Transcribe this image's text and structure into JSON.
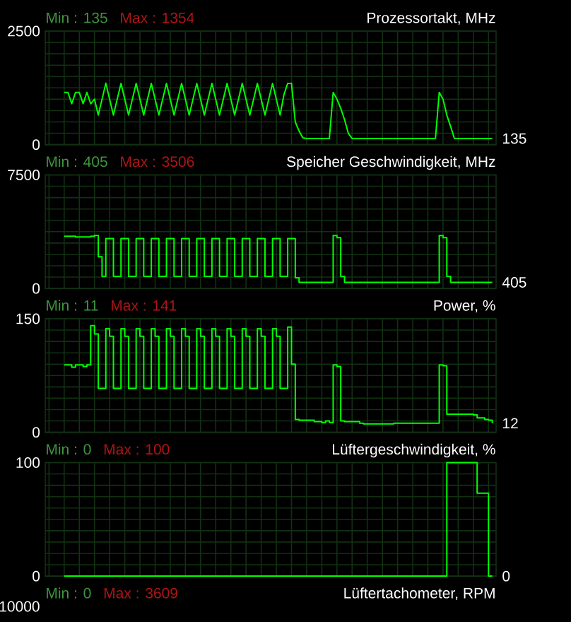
{
  "chart_data": [
    {
      "type": "line",
      "title": "Prozessortakt, MHz",
      "annotations": [
        "Min : 135",
        "Max : 1354",
        "135"
      ],
      "categories": [
        null,
        null,
        null,
        null,
        null,
        null,
        null,
        null,
        null,
        null,
        null,
        null,
        null,
        null,
        null,
        null,
        null,
        null,
        null,
        null,
        null,
        null,
        null,
        null,
        null,
        null,
        null,
        null,
        null,
        null,
        null,
        null,
        null,
        null,
        null,
        null,
        null,
        null,
        null,
        null,
        null,
        null,
        null,
        null,
        null,
        null,
        null,
        null,
        null,
        null,
        null,
        null,
        null,
        null,
        null,
        null,
        null,
        null,
        null,
        null,
        null,
        null,
        null,
        null,
        null,
        null,
        null,
        null,
        null,
        null,
        null,
        null,
        null,
        null,
        null,
        null,
        null,
        null,
        null,
        null,
        null,
        null,
        null,
        null,
        null,
        null,
        null,
        null,
        null,
        null,
        null,
        null,
        null,
        null,
        null,
        null,
        null,
        null,
        null,
        null,
        null,
        null,
        null,
        null,
        null,
        null,
        null,
        null,
        null,
        null,
        null,
        null,
        null,
        null,
        null,
        null,
        null,
        null,
        null,
        null
      ],
      "series": [
        {
          "color": "#00ff00",
          "values": [
            null,
            null,
            null,
            null,
            null,
            1150,
            1150,
            900,
            1150,
            1150,
            900,
            1150,
            900,
            1000,
            650,
            1000,
            1354,
            1000,
            650,
            1000,
            1350,
            1000,
            650,
            1000,
            1350,
            1000,
            650,
            1000,
            1350,
            1000,
            650,
            1000,
            1350,
            1000,
            650,
            1000,
            1350,
            1000,
            650,
            1000,
            1350,
            1000,
            650,
            1000,
            1350,
            1000,
            650,
            1000,
            1350,
            1000,
            650,
            1000,
            1350,
            1000,
            650,
            1000,
            1350,
            1000,
            650,
            1000,
            1350,
            1000,
            650,
            1100,
            1350,
            1350,
            500,
            300,
            150,
            135,
            135,
            135,
            135,
            135,
            135,
            135,
            1150,
            1000,
            800,
            550,
            250,
            135,
            135,
            135,
            135,
            135,
            135,
            135,
            135,
            135,
            135,
            135,
            135,
            135,
            135,
            135,
            135,
            135,
            135,
            135,
            135,
            135,
            135,
            135,
            1150,
            1000,
            650,
            400,
            135,
            135,
            135,
            135,
            135,
            135,
            135,
            135,
            135,
            135,
            135,
            null
          ]
        }
      ],
      "ylim": [
        0,
        2500
      ],
      "yticks": [
        0,
        {
          "value": 250,
          "label": null
        },
        {
          "value": 500,
          "label": null
        },
        {
          "value": 750,
          "label": null
        },
        {
          "value": 1000,
          "label": null
        },
        {
          "value": 1250,
          "label": null
        },
        {
          "value": 1500,
          "label": null
        },
        {
          "value": 1750,
          "label": null
        },
        {
          "value": 2000,
          "label": null
        },
        {
          "value": 2250,
          "label": null
        },
        2500
      ],
      "grid": true,
      "tick_labels": "y"
    },
    {
      "type": "step",
      "title": "Speicher Geschwindigkeit, MHz",
      "annotations": [
        "Min : 405",
        "Max : 3506",
        "405"
      ],
      "categories": [
        null,
        null,
        null,
        null,
        null,
        null,
        null,
        null,
        null,
        null,
        null,
        null,
        null,
        null,
        null,
        null,
        null,
        null,
        null,
        null,
        null,
        null,
        null,
        null,
        null,
        null,
        null,
        null,
        null,
        null,
        null,
        null,
        null,
        null,
        null,
        null,
        null,
        null,
        null,
        null,
        null,
        null,
        null,
        null,
        null,
        null,
        null,
        null,
        null,
        null,
        null,
        null,
        null,
        null,
        null,
        null,
        null,
        null,
        null,
        null,
        null,
        null,
        null,
        null,
        null,
        null,
        null,
        null,
        null,
        null,
        null,
        null,
        null,
        null,
        null,
        null,
        null,
        null,
        null,
        null,
        null,
        null,
        null,
        null,
        null,
        null,
        null,
        null,
        null,
        null,
        null,
        null,
        null,
        null,
        null,
        null,
        null,
        null,
        null,
        null,
        null,
        null,
        null,
        null,
        null,
        null,
        null,
        null,
        null,
        null,
        null,
        null,
        null,
        null,
        null,
        null,
        null,
        null,
        null,
        null
      ],
      "series": [
        {
          "color": "#00ff00",
          "values": [
            null,
            null,
            null,
            null,
            null,
            3450,
            3450,
            3450,
            3400,
            3400,
            3400,
            3400,
            3450,
            3506,
            2100,
            800,
            3300,
            3300,
            800,
            800,
            3300,
            3300,
            800,
            800,
            3300,
            3300,
            800,
            800,
            3300,
            3300,
            800,
            800,
            3300,
            3300,
            800,
            800,
            3300,
            3300,
            800,
            800,
            3300,
            3300,
            800,
            800,
            3300,
            3300,
            800,
            800,
            3300,
            3300,
            800,
            800,
            3300,
            3300,
            800,
            800,
            3300,
            3300,
            800,
            800,
            3300,
            3300,
            800,
            800,
            3300,
            3300,
            700,
            405,
            405,
            405,
            405,
            405,
            405,
            405,
            405,
            405,
            3500,
            3350,
            800,
            405,
            405,
            405,
            405,
            405,
            405,
            405,
            405,
            405,
            405,
            405,
            405,
            405,
            405,
            405,
            405,
            405,
            405,
            405,
            405,
            405,
            405,
            405,
            405,
            405,
            3500,
            3350,
            800,
            405,
            405,
            405,
            405,
            405,
            405,
            405,
            405,
            405,
            405,
            405,
            405,
            null
          ]
        }
      ],
      "ylim": [
        0,
        7500
      ],
      "yticks": [
        0,
        {
          "value": 750,
          "label": null
        },
        {
          "value": 1500,
          "label": null
        },
        {
          "value": 2250,
          "label": null
        },
        {
          "value": 3000,
          "label": null
        },
        {
          "value": 3750,
          "label": null
        },
        {
          "value": 4500,
          "label": null
        },
        {
          "value": 5250,
          "label": null
        },
        {
          "value": 6000,
          "label": null
        },
        {
          "value": 6750,
          "label": null
        },
        7500
      ],
      "grid": true,
      "tick_labels": "y"
    },
    {
      "type": "step",
      "title": "Power, %",
      "annotations": [
        "Min : 11",
        "Max : 141",
        "12"
      ],
      "categories": [
        null,
        null,
        null,
        null,
        null,
        null,
        null,
        null,
        null,
        null,
        null,
        null,
        null,
        null,
        null,
        null,
        null,
        null,
        null,
        null,
        null,
        null,
        null,
        null,
        null,
        null,
        null,
        null,
        null,
        null,
        null,
        null,
        null,
        null,
        null,
        null,
        null,
        null,
        null,
        null,
        null,
        null,
        null,
        null,
        null,
        null,
        null,
        null,
        null,
        null,
        null,
        null,
        null,
        null,
        null,
        null,
        null,
        null,
        null,
        null,
        null,
        null,
        null,
        null,
        null,
        null,
        null,
        null,
        null,
        null,
        null,
        null,
        null,
        null,
        null,
        null,
        null,
        null,
        null,
        null,
        null,
        null,
        null,
        null,
        null,
        null,
        null,
        null,
        null,
        null,
        null,
        null,
        null,
        null,
        null,
        null,
        null,
        null,
        null,
        null,
        null,
        null,
        null,
        null,
        null,
        null,
        null,
        null,
        null,
        null,
        null,
        null,
        null,
        null,
        null,
        null,
        null,
        null,
        null,
        null
      ],
      "series": [
        {
          "color": "#00ff00",
          "values": [
            null,
            null,
            null,
            null,
            null,
            89,
            89,
            86,
            89,
            89,
            87,
            89,
            141,
            130,
            58,
            58,
            137,
            127,
            58,
            58,
            137,
            127,
            58,
            58,
            137,
            127,
            58,
            58,
            137,
            127,
            58,
            58,
            137,
            127,
            58,
            58,
            137,
            127,
            58,
            58,
            137,
            127,
            58,
            58,
            137,
            127,
            58,
            58,
            137,
            127,
            58,
            58,
            137,
            127,
            58,
            58,
            137,
            127,
            58,
            58,
            137,
            127,
            58,
            58,
            139,
            90,
            17,
            16,
            16,
            16,
            16,
            14,
            14,
            13,
            15,
            13,
            89,
            87,
            15,
            14,
            14,
            14,
            14,
            12,
            11,
            11,
            11,
            11,
            11,
            11,
            11,
            11,
            12,
            12,
            12,
            12,
            12,
            12,
            12,
            12,
            12,
            12,
            12,
            12,
            89,
            88,
            24,
            24,
            24,
            24,
            24,
            24,
            24,
            23,
            19,
            19,
            17,
            16,
            12,
            null
          ]
        }
      ],
      "ylim": [
        0,
        150
      ],
      "yticks": [
        0,
        {
          "value": 15,
          "label": null
        },
        {
          "value": 30,
          "label": null
        },
        {
          "value": 45,
          "label": null
        },
        {
          "value": 60,
          "label": null
        },
        {
          "value": 75,
          "label": null
        },
        {
          "value": 90,
          "label": null
        },
        {
          "value": 105,
          "label": null
        },
        {
          "value": 120,
          "label": null
        },
        {
          "value": 135,
          "label": null
        },
        150
      ],
      "grid": true,
      "tick_labels": "y"
    },
    {
      "type": "step",
      "title": "Lüftergeschwindigkeit, %",
      "annotations": [
        "Min : 0",
        "Max : 100",
        "0"
      ],
      "categories": [
        null,
        null,
        null,
        null,
        null,
        null,
        null,
        null,
        null,
        null,
        null,
        null,
        null,
        null,
        null,
        null,
        null,
        null,
        null,
        null,
        null,
        null,
        null,
        null,
        null,
        null,
        null,
        null,
        null,
        null,
        null,
        null,
        null,
        null,
        null,
        null,
        null,
        null,
        null,
        null,
        null,
        null,
        null,
        null,
        null,
        null,
        null,
        null,
        null,
        null,
        null,
        null,
        null,
        null,
        null,
        null,
        null,
        null,
        null,
        null,
        null,
        null,
        null,
        null,
        null,
        null,
        null,
        null,
        null,
        null,
        null,
        null,
        null,
        null,
        null,
        null,
        null,
        null,
        null,
        null,
        null,
        null,
        null,
        null,
        null,
        null,
        null,
        null,
        null,
        null,
        null,
        null,
        null,
        null,
        null,
        null,
        null,
        null,
        null,
        null,
        null,
        null,
        null,
        null,
        null,
        null,
        null,
        null,
        null,
        null,
        null,
        null,
        null,
        null,
        null,
        null,
        null,
        null,
        null,
        null
      ],
      "series": [
        {
          "color": "#00ff00",
          "values": [
            null,
            null,
            null,
            null,
            null,
            0,
            0,
            0,
            0,
            0,
            0,
            0,
            0,
            0,
            0,
            0,
            0,
            0,
            0,
            0,
            0,
            0,
            0,
            0,
            0,
            0,
            0,
            0,
            0,
            0,
            0,
            0,
            0,
            0,
            0,
            0,
            0,
            0,
            0,
            0,
            0,
            0,
            0,
            0,
            0,
            0,
            0,
            0,
            0,
            0,
            0,
            0,
            0,
            0,
            0,
            0,
            0,
            0,
            0,
            0,
            0,
            0,
            0,
            0,
            0,
            0,
            0,
            0,
            0,
            0,
            0,
            0,
            0,
            0,
            0,
            0,
            0,
            0,
            0,
            0,
            0,
            0,
            0,
            0,
            0,
            0,
            0,
            0,
            0,
            0,
            0,
            0,
            0,
            0,
            0,
            0,
            0,
            0,
            0,
            0,
            0,
            0,
            0,
            0,
            0,
            0,
            100,
            100,
            100,
            100,
            100,
            100,
            100,
            100,
            73,
            73,
            73,
            0,
            0,
            null
          ]
        }
      ],
      "ylim": [
        0,
        100
      ],
      "yticks": [
        0,
        {
          "value": 10,
          "label": null
        },
        {
          "value": 20,
          "label": null
        },
        {
          "value": 30,
          "label": null
        },
        {
          "value": 40,
          "label": null
        },
        {
          "value": 50,
          "label": null
        },
        {
          "value": 60,
          "label": null
        },
        {
          "value": 70,
          "label": null
        },
        {
          "value": 80,
          "label": null
        },
        {
          "value": 90,
          "label": null
        },
        100
      ],
      "grid": true,
      "tick_labels": "y"
    },
    {
      "type": "other",
      "title": "Lüftertachometer, RPM",
      "annotations": [
        "Min : 0",
        "Max : 3609",
        "10000"
      ]
    }
  ]
}
